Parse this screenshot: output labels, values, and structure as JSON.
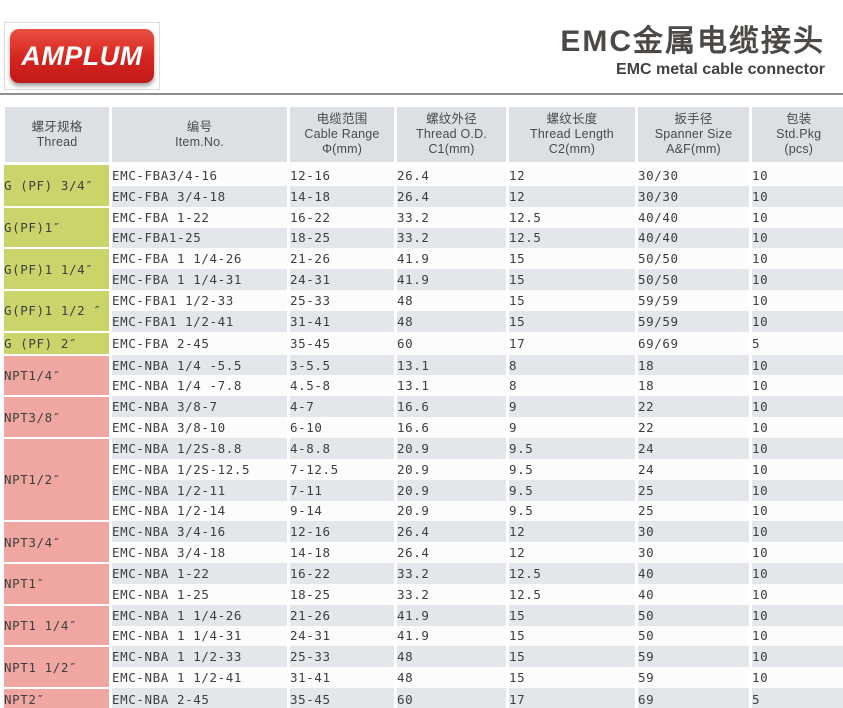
{
  "header": {
    "logo_text": "AMPLUM",
    "title_cn": "EMC金属电缆接头",
    "title_en": "EMC metal cable connector"
  },
  "table": {
    "columns": [
      {
        "key": "thread",
        "cn": "螺牙规格",
        "en": "Thread",
        "unit": ""
      },
      {
        "key": "item-no",
        "cn": "编号",
        "en": "Item.No.",
        "unit": ""
      },
      {
        "key": "cable-range",
        "cn": "电缆范围",
        "en": "Cable Range",
        "unit": "Φ(mm)"
      },
      {
        "key": "thread-od",
        "cn": "螺纹外径",
        "en": "Thread O.D.",
        "unit": "C1(mm)"
      },
      {
        "key": "thread-length",
        "cn": "螺纹长度",
        "en": "Thread Length",
        "unit": "C2(mm)"
      },
      {
        "key": "spanner-size",
        "cn": "扳手径",
        "en": "Spanner Size",
        "unit": "A&F(mm)"
      },
      {
        "key": "std-pkg",
        "cn": "包装",
        "en": "Std.Pkg",
        "unit": "(pcs)"
      }
    ],
    "row_fields": [
      "item_no",
      "cable_range",
      "thread_od",
      "thread_length",
      "spanner_size",
      "std_pkg"
    ],
    "groups": [
      {
        "label": "G (PF) 3/4″",
        "type": "g",
        "rows": [
          [
            "EMC-FBA3/4-16",
            "12-16",
            "26.4",
            "12",
            "30/30",
            "10"
          ],
          [
            "EMC-FBA 3/4-18",
            "14-18",
            "26.4",
            "12",
            "30/30",
            "10"
          ]
        ]
      },
      {
        "label": "G(PF)1″",
        "type": "g",
        "rows": [
          [
            "EMC-FBA 1-22",
            "16-22",
            "33.2",
            "12.5",
            "40/40",
            "10"
          ],
          [
            "EMC-FBA1-25",
            "18-25",
            "33.2",
            "12.5",
            "40/40",
            "10"
          ]
        ]
      },
      {
        "label": "G(PF)1 1/4″",
        "type": "g",
        "rows": [
          [
            "EMC-FBA 1 1/4-26",
            "21-26",
            "41.9",
            "15",
            "50/50",
            "10"
          ],
          [
            "EMC-FBA 1 1/4-31",
            "24-31",
            "41.9",
            "15",
            "50/50",
            "10"
          ]
        ]
      },
      {
        "label": "G(PF)1 1/2 ″",
        "type": "g",
        "rows": [
          [
            "EMC-FBA1 1/2-33",
            "25-33",
            "48",
            "15",
            "59/59",
            "10"
          ],
          [
            "EMC-FBA1 1/2-41",
            "31-41",
            "48",
            "15",
            "59/59",
            "10"
          ]
        ]
      },
      {
        "label": "G (PF) 2″",
        "type": "g",
        "rows": [
          [
            "EMC-FBA 2-45",
            "35-45",
            "60",
            "17",
            "69/69",
            "5"
          ]
        ]
      },
      {
        "label": "NPT1/4″",
        "type": "npt",
        "rows": [
          [
            "EMC-NBA 1/4 -5.5",
            "3-5.5",
            "13.1",
            "8",
            "18",
            "10"
          ],
          [
            "EMC-NBA 1/4 -7.8",
            "4.5-8",
            "13.1",
            "8",
            "18",
            "10"
          ]
        ]
      },
      {
        "label": "NPT3/8″",
        "type": "npt",
        "rows": [
          [
            "EMC-NBA 3/8-7",
            "4-7",
            "16.6",
            "9",
            "22",
            "10"
          ],
          [
            "EMC-NBA 3/8-10",
            "6-10",
            "16.6",
            "9",
            "22",
            "10"
          ]
        ]
      },
      {
        "label": "NPT1/2″",
        "type": "npt",
        "rows": [
          [
            "EMC-NBA 1/2S-8.8",
            "4-8.8",
            "20.9",
            "9.5",
            "24",
            "10"
          ],
          [
            "EMC-NBA 1/2S-12.5",
            "7-12.5",
            "20.9",
            "9.5",
            "24",
            "10"
          ],
          [
            "EMC-NBA 1/2-11",
            "7-11",
            "20.9",
            "9.5",
            "25",
            "10"
          ],
          [
            "EMC-NBA 1/2-14",
            "9-14",
            "20.9",
            "9.5",
            "25",
            "10"
          ]
        ]
      },
      {
        "label": "NPT3/4″",
        "type": "npt",
        "rows": [
          [
            "EMC-NBA 3/4-16",
            "12-16",
            "26.4",
            "12",
            "30",
            "10"
          ],
          [
            "EMC-NBA 3/4-18",
            "14-18",
            "26.4",
            "12",
            "30",
            "10"
          ]
        ]
      },
      {
        "label": "NPT1″",
        "type": "npt",
        "rows": [
          [
            "EMC-NBA 1-22",
            "16-22",
            "33.2",
            "12.5",
            "40",
            "10"
          ],
          [
            "EMC-NBA 1-25",
            "18-25",
            "33.2",
            "12.5",
            "40",
            "10"
          ]
        ]
      },
      {
        "label": "NPT1 1/4″",
        "type": "npt",
        "rows": [
          [
            "EMC-NBA 1 1/4-26",
            "21-26",
            "41.9",
            "15",
            "50",
            "10"
          ],
          [
            "EMC-NBA 1 1/4-31",
            "24-31",
            "41.9",
            "15",
            "50",
            "10"
          ]
        ]
      },
      {
        "label": "NPT1 1/2″",
        "type": "npt",
        "rows": [
          [
            "EMC-NBA 1 1/2-33",
            "25-33",
            "48",
            "15",
            "59",
            "10"
          ],
          [
            "EMC-NBA 1 1/2-41",
            "31-41",
            "48",
            "15",
            "59",
            "10"
          ]
        ]
      },
      {
        "label": "NPT2″",
        "type": "npt",
        "rows": [
          [
            "EMC-NBA 2-45",
            "35-45",
            "60",
            "17",
            "69",
            "5"
          ]
        ]
      }
    ]
  },
  "colors": {
    "brand_red": "#d6241f",
    "brand_red_light": "#e95043",
    "g_group": "#cbd46a",
    "npt_group": "#f0a7a1",
    "header_bg": "#dce0e5",
    "row_base": "#fcfcfd",
    "row_alt": "#e3e6ea",
    "divider": "#8e8e8e"
  }
}
